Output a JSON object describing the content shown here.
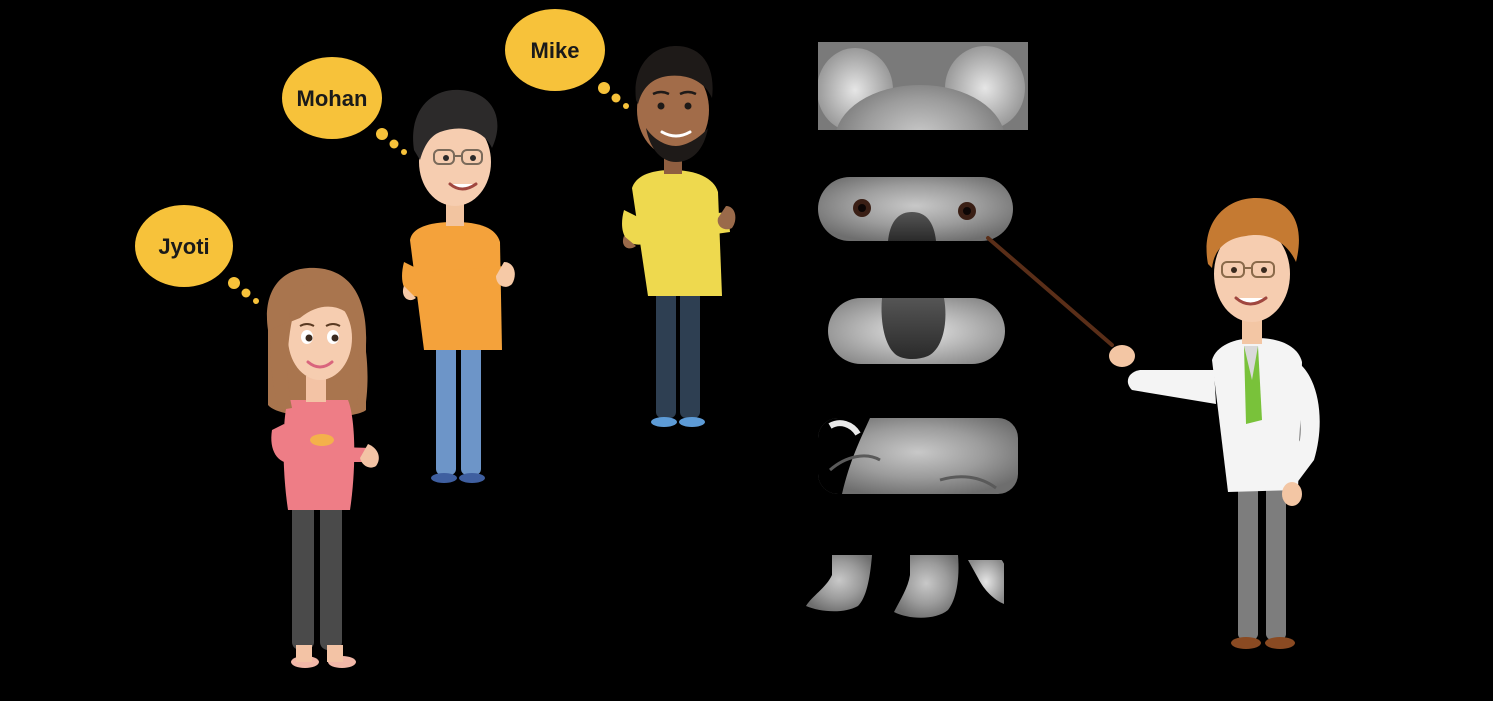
{
  "characters": [
    {
      "id": "jyoti",
      "name": "Jyoti"
    },
    {
      "id": "mohan",
      "name": "Mohan"
    },
    {
      "id": "mike",
      "name": "Mike"
    }
  ],
  "presenter": {
    "id": "teacher"
  },
  "koala_strips": [
    "ears",
    "eyes",
    "nose",
    "body",
    "feet"
  ],
  "colors": {
    "background": "#000000",
    "bubble": "#f7c23a",
    "bubble_text": "#1a1a1a"
  }
}
